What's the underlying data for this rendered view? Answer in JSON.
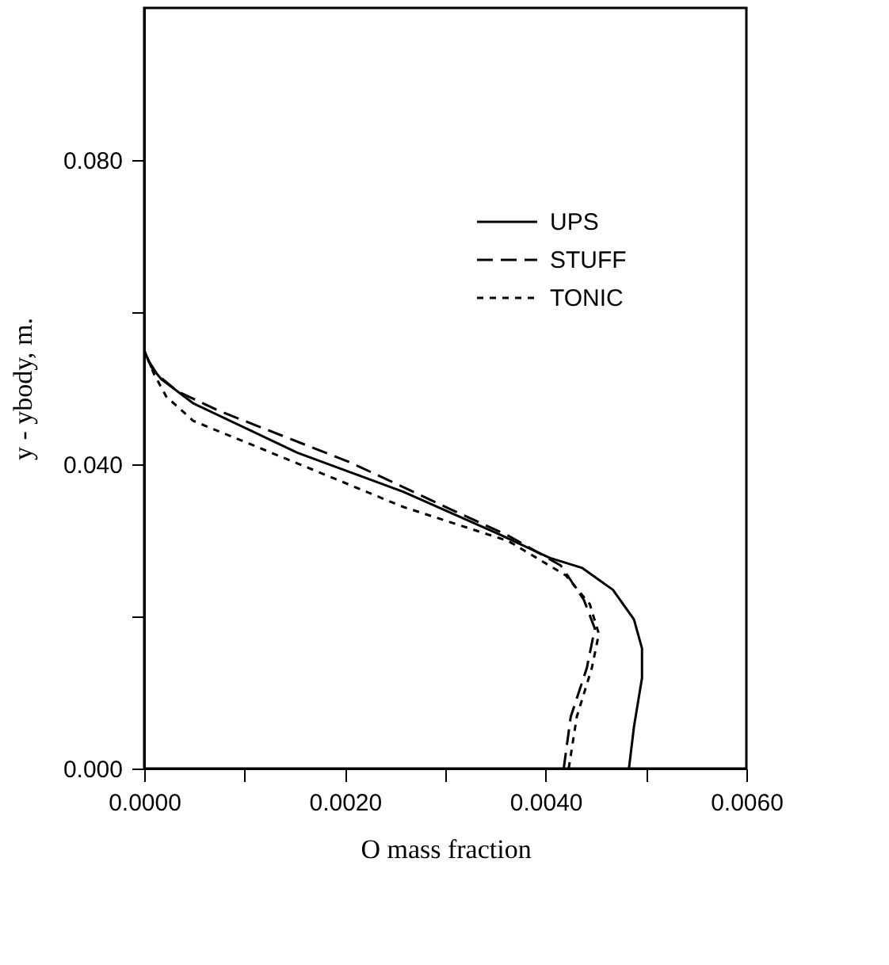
{
  "chart_data": {
    "type": "line",
    "xlabel": "O mass fraction",
    "ylabel": "y - ybody, m.",
    "xlim": [
      0.0,
      0.006
    ],
    "ylim": [
      0.0,
      0.1
    ],
    "xticks": [
      {
        "value": 0.0,
        "label": "0.0000"
      },
      {
        "value": 0.001,
        "label": null
      },
      {
        "value": 0.002,
        "label": "0.0020"
      },
      {
        "value": 0.003,
        "label": null
      },
      {
        "value": 0.004,
        "label": "0.0040"
      },
      {
        "value": 0.005,
        "label": null
      },
      {
        "value": 0.006,
        "label": "0.0060"
      }
    ],
    "yticks": [
      {
        "value": 0.0,
        "label": "0.000"
      },
      {
        "value": 0.02,
        "label": null
      },
      {
        "value": 0.04,
        "label": "0.040"
      },
      {
        "value": 0.06,
        "label": null
      },
      {
        "value": 0.08,
        "label": "0.080"
      }
    ],
    "grid": false,
    "legend": "top right",
    "series": [
      {
        "name": "UPS",
        "color": "#000000",
        "line_style": "solid",
        "x": [
          0.00483,
          0.00488,
          0.00496,
          0.00496,
          0.00488,
          0.00467,
          0.00436,
          0.00404,
          0.00352,
          0.00258,
          0.00153,
          0.00049,
          0.00017,
          7e-05,
          0.0
        ],
        "values": [
          0.0,
          0.0055,
          0.0119,
          0.0158,
          0.0196,
          0.0235,
          0.0264,
          0.0277,
          0.0309,
          0.0364,
          0.0415,
          0.048,
          0.0512,
          0.0528,
          0.055
        ]
      },
      {
        "name": "STUFF",
        "color": "#000000",
        "line_style": "dashed",
        "x": [
          0.00418,
          0.00425,
          0.00441,
          0.00449,
          0.00438,
          0.00415,
          0.00363,
          0.0031,
          0.00206,
          0.00075,
          0.00033,
          0.00013,
          4e-05,
          0.0
        ],
        "values": [
          0.0,
          0.0068,
          0.0132,
          0.0184,
          0.0222,
          0.0267,
          0.0306,
          0.0338,
          0.0402,
          0.047,
          0.0496,
          0.0518,
          0.0537,
          0.055
        ]
      },
      {
        "name": "TONIC",
        "color": "#000000",
        "line_style": "dotted",
        "x": [
          0.00423,
          0.00431,
          0.00446,
          0.00453,
          0.00444,
          0.0042,
          0.00363,
          0.00258,
          0.00153,
          0.00049,
          0.00022,
          0.0001,
          4e-05,
          0.0
        ],
        "values": [
          0.0,
          0.0068,
          0.0132,
          0.0177,
          0.0216,
          0.0254,
          0.0299,
          0.0344,
          0.0401,
          0.0457,
          0.0489,
          0.0518,
          0.0537,
          0.055
        ]
      }
    ]
  }
}
